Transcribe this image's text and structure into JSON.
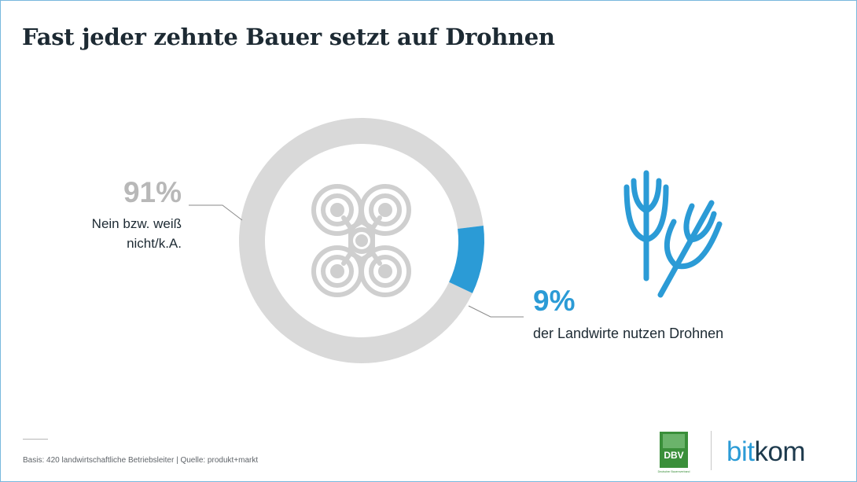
{
  "title": "Fast jeder zehnte Bauer setzt auf Drohnen",
  "chart_data": {
    "type": "pie",
    "variant": "donut",
    "slices": [
      {
        "label": "Nein bzw. weiß nicht/k.A.",
        "value": 91,
        "display": "91%",
        "color": "#d9d9d9"
      },
      {
        "label": "der Landwirte nutzen Drohnen",
        "value": 9,
        "display": "9%",
        "color": "#2b9bd6"
      }
    ]
  },
  "labels": {
    "no_pct": "91%",
    "no_text": "Nein bzw. weiß nicht/k.A.",
    "yes_pct": "9%",
    "yes_text": "der Landwirte nutzen Drohnen"
  },
  "icons": {
    "center": "drone-icon",
    "side": "wheat-icon"
  },
  "footer": {
    "source": "Basis: 420 landwirtschaftliche Betriebsleiter | Quelle: produkt+markt"
  },
  "logos": {
    "dbv": "DBV",
    "dbv_sub": "Deutscher Bauernverband",
    "bitkom_a": "bit",
    "bitkom_b": "kom"
  },
  "colors": {
    "accent": "#2b9bd6",
    "gray": "#d9d9d9",
    "dbv_green": "#3a8f3a",
    "dark": "#1d2a33"
  }
}
